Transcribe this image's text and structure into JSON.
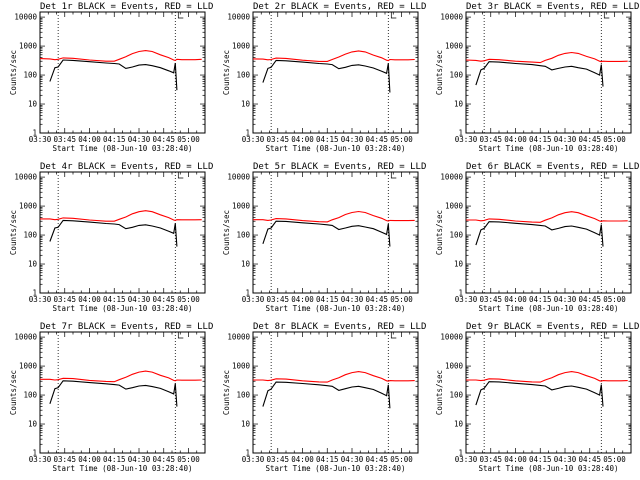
{
  "chart_data": {
    "type": "line",
    "grid": "3x3",
    "x_ticks": [
      "03:30",
      "03:45",
      "04:00",
      "04:15",
      "04:30",
      "04:45",
      "05:00"
    ],
    "x_range": [
      "03:30",
      "05:10"
    ],
    "y_scale": "log",
    "y_ticks": [
      "1",
      "10",
      "100",
      "1000",
      "10000"
    ],
    "ylim": [
      1,
      15000
    ],
    "ylabel": "Counts/sec",
    "xlabel": "Start Time (08-Jun-10 03:28:40)",
    "vlines": [
      "03:41",
      "04:52"
    ],
    "colors": {
      "events": "#000000",
      "lld": "#ff0000"
    },
    "time_x": [
      "03:30",
      "03:36",
      "03:39",
      "03:41",
      "03:44",
      "03:50",
      "04:00",
      "04:10",
      "04:15",
      "04:18",
      "04:22",
      "04:26",
      "04:30",
      "04:34",
      "04:38",
      "04:43",
      "04:48",
      "04:51",
      "04:52",
      "04:53",
      "04:56",
      "05:00",
      "05:04",
      "05:08"
    ],
    "panels": [
      {
        "title": "Det 1r BLACK = Events, RED = LLD",
        "series": [
          {
            "name": "Events",
            "values": [
              null,
              60,
              180,
              190,
              330,
              320,
              290,
              260,
              250,
              240,
              170,
              190,
              220,
              230,
              210,
              180,
              140,
              120,
              260,
              30,
              null,
              null,
              null,
              null
            ]
          },
          {
            "name": "LLD",
            "values": [
              370,
              360,
              340,
              350,
              390,
              380,
              330,
              300,
              300,
              350,
              430,
              550,
              650,
              700,
              650,
              500,
              400,
              330,
              320,
              350,
              340,
              340,
              340,
              350
            ]
          }
        ]
      },
      {
        "title": "Det 2r BLACK = Events, RED = LLD",
        "series": [
          {
            "name": "Events",
            "values": [
              null,
              55,
              170,
              185,
              320,
              310,
              280,
              250,
              240,
              230,
              165,
              185,
              215,
              225,
              205,
              175,
              135,
              115,
              255,
              25,
              null,
              null,
              null,
              null
            ]
          },
          {
            "name": "LLD",
            "values": [
              360,
              355,
              335,
              345,
              385,
              375,
              325,
              295,
              295,
              345,
              420,
              530,
              630,
              680,
              630,
              490,
              395,
              325,
              315,
              345,
              335,
              335,
              335,
              345
            ]
          }
        ]
      },
      {
        "title": "Det 3r BLACK = Events, RED = LLD",
        "series": [
          {
            "name": "Events",
            "values": [
              null,
              45,
              150,
              170,
              290,
              280,
              250,
              230,
              210,
              200,
              150,
              170,
              190,
              200,
              180,
              160,
              120,
              100,
              230,
              40,
              null,
              null,
              null,
              null
            ]
          },
          {
            "name": "LLD",
            "values": [
              330,
              320,
              300,
              310,
              350,
              340,
              300,
              280,
              270,
              320,
              380,
              480,
              560,
              600,
              560,
              440,
              360,
              300,
              290,
              300,
              295,
              295,
              295,
              300
            ]
          }
        ]
      },
      {
        "title": "Det 4r BLACK = Events, RED = LLD",
        "series": [
          {
            "name": "Events",
            "values": [
              null,
              60,
              175,
              185,
              320,
              310,
              280,
              250,
              240,
              230,
              165,
              185,
              215,
              225,
              205,
              175,
              135,
              115,
              255,
              40,
              null,
              null,
              null,
              null
            ]
          },
          {
            "name": "LLD",
            "values": [
              360,
              360,
              340,
              350,
              390,
              380,
              330,
              300,
              300,
              350,
              420,
              540,
              640,
              690,
              640,
              500,
              400,
              330,
              320,
              340,
              335,
              335,
              335,
              340
            ]
          }
        ]
      },
      {
        "title": "Det 5r BLACK = Events, RED = LLD",
        "series": [
          {
            "name": "Events",
            "values": [
              null,
              50,
              160,
              175,
              300,
              295,
              265,
              240,
              225,
              215,
              155,
              175,
              200,
              210,
              190,
              165,
              125,
              105,
              240,
              40,
              null,
              null,
              null,
              null
            ]
          },
          {
            "name": "LLD",
            "values": [
              340,
              340,
              320,
              330,
              370,
              360,
              315,
              290,
              285,
              335,
              400,
              510,
              600,
              650,
              600,
              470,
              380,
              315,
              305,
              320,
              315,
              315,
              315,
              320
            ]
          }
        ]
      },
      {
        "title": "Det 6r BLACK = Events, RED = LLD",
        "series": [
          {
            "name": "Events",
            "values": [
              null,
              45,
              150,
              170,
              290,
              285,
              255,
              230,
              215,
              205,
              150,
              170,
              195,
              205,
              185,
              160,
              120,
              100,
              230,
              40,
              null,
              null,
              null,
              null
            ]
          },
          {
            "name": "LLD",
            "values": [
              330,
              330,
              310,
              320,
              360,
              350,
              305,
              280,
              275,
              325,
              390,
              500,
              590,
              640,
              590,
              460,
              370,
              305,
              295,
              310,
              305,
              305,
              305,
              310
            ]
          }
        ]
      },
      {
        "title": "Det 7r BLACK = Events, RED = LLD",
        "series": [
          {
            "name": "Events",
            "values": [
              null,
              50,
              165,
              180,
              310,
              300,
              270,
              245,
              230,
              220,
              160,
              180,
              205,
              215,
              195,
              170,
              130,
              110,
              250,
              40,
              null,
              null,
              null,
              null
            ]
          },
          {
            "name": "LLD",
            "values": [
              350,
              350,
              330,
              340,
              380,
              370,
              320,
              295,
              290,
              340,
              410,
              520,
              620,
              670,
              620,
              480,
              390,
              320,
              310,
              330,
              325,
              325,
              325,
              330
            ]
          }
        ]
      },
      {
        "title": "Det 8r BLACK = Events, RED = LLD",
        "series": [
          {
            "name": "Events",
            "values": [
              null,
              40,
              140,
              160,
              280,
              275,
              250,
              225,
              210,
              200,
              145,
              165,
              190,
              200,
              180,
              155,
              115,
              95,
              225,
              35,
              null,
              null,
              null,
              null
            ]
          },
          {
            "name": "LLD",
            "values": [
              330,
              330,
              315,
              325,
              365,
              355,
              310,
              285,
              280,
              330,
              395,
              505,
              595,
              645,
              595,
              465,
              375,
              310,
              300,
              315,
              310,
              310,
              310,
              315
            ]
          }
        ]
      },
      {
        "title": "Det 9r BLACK = Events, RED = LLD",
        "series": [
          {
            "name": "Events",
            "values": [
              null,
              45,
              150,
              170,
              290,
              285,
              255,
              230,
              215,
              205,
              150,
              170,
              195,
              205,
              185,
              160,
              120,
              100,
              230,
              40,
              null,
              null,
              null,
              null
            ]
          },
          {
            "name": "LLD",
            "values": [
              330,
              330,
              315,
              325,
              365,
              355,
              310,
              285,
              280,
              330,
              395,
              505,
              595,
              645,
              595,
              465,
              375,
              310,
              300,
              315,
              310,
              310,
              310,
              315
            ]
          }
        ]
      }
    ]
  }
}
